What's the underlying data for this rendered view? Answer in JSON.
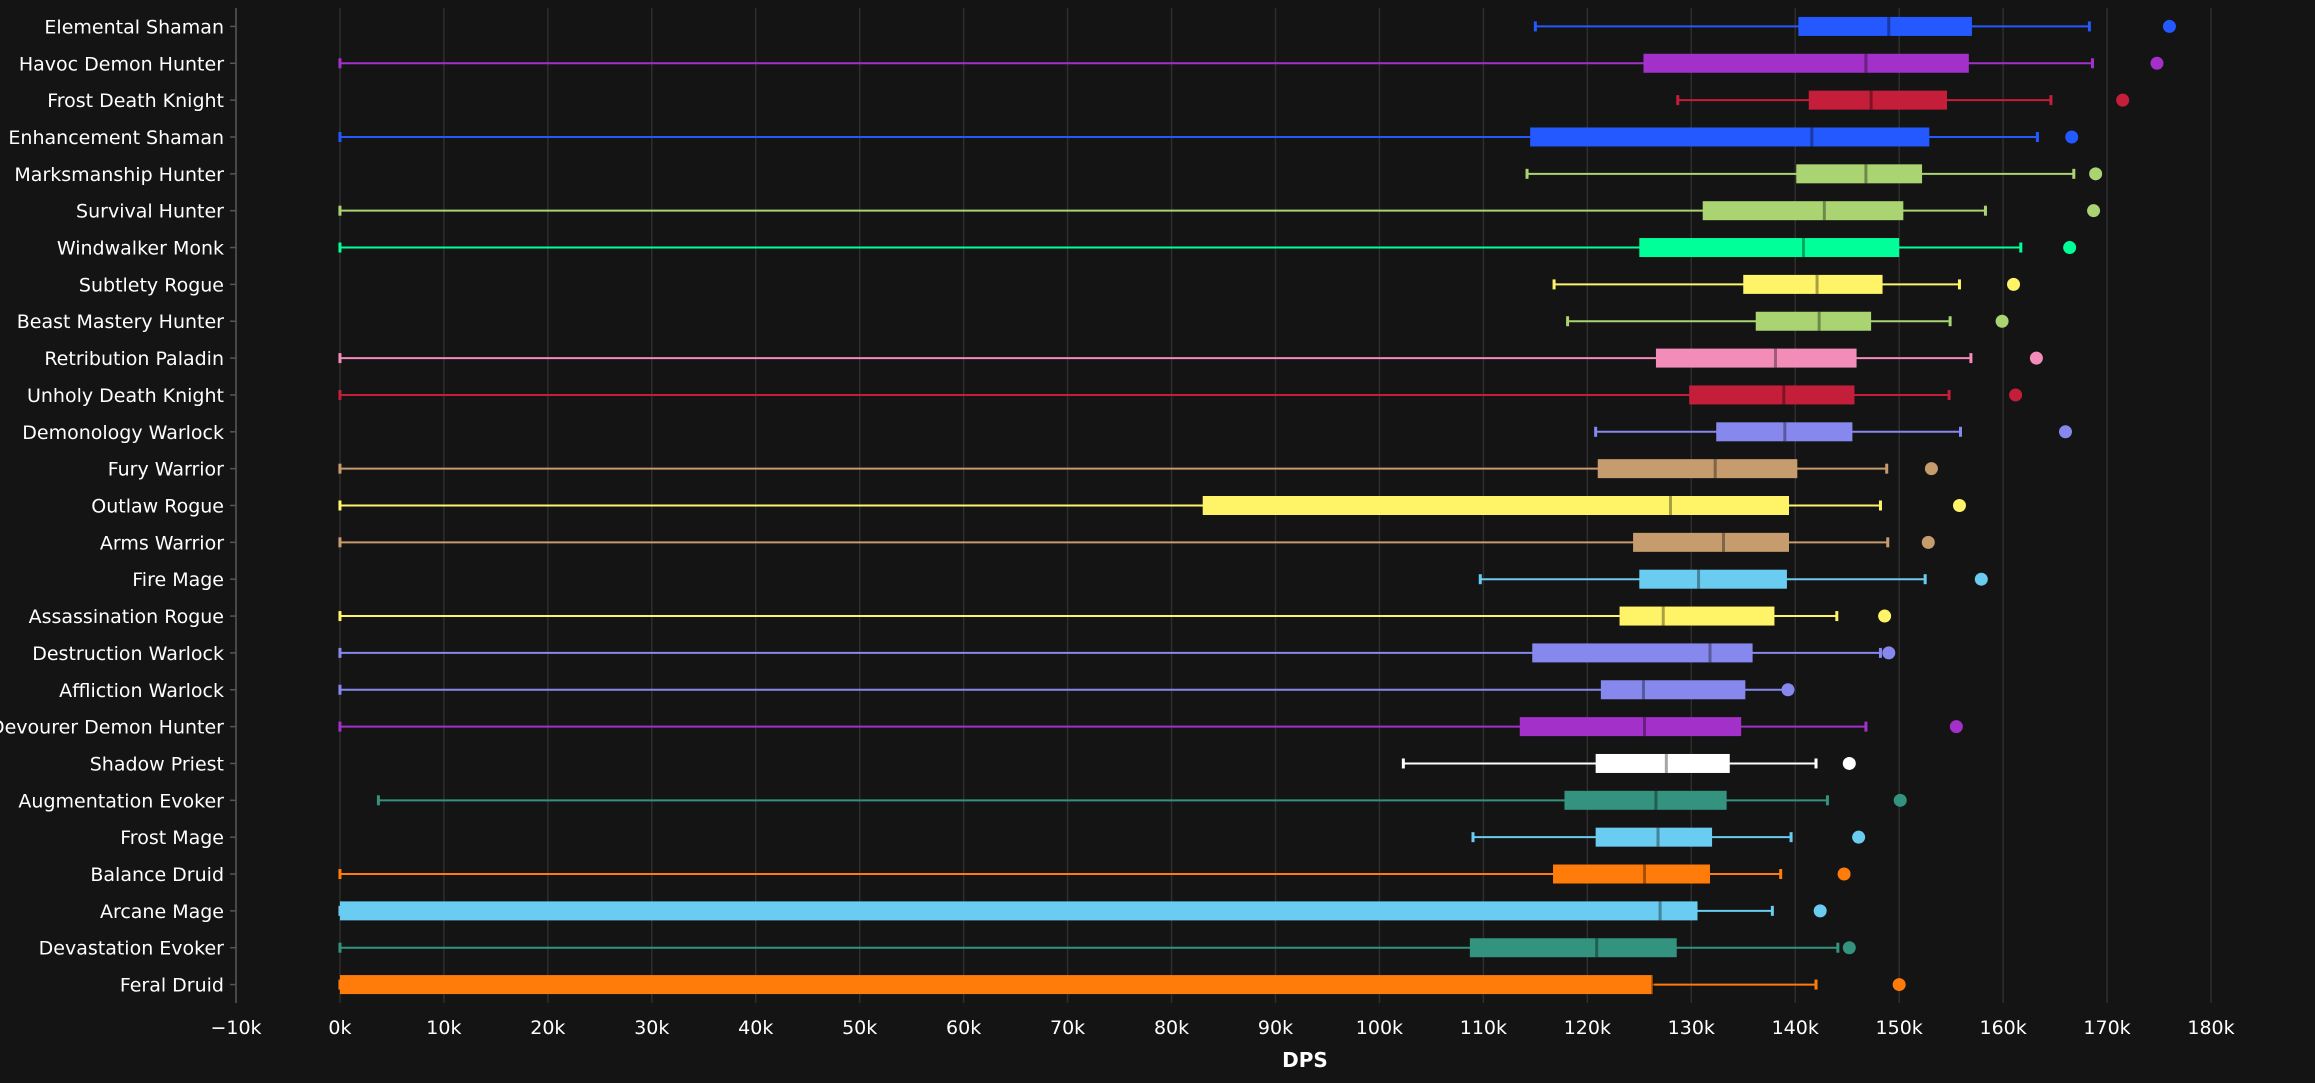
{
  "chart_data": {
    "type": "boxplot",
    "orientation": "horizontal",
    "xlabel": "DPS",
    "xlim": [
      -10000,
      185000
    ],
    "x_ticks": [
      -10000,
      0,
      10000,
      20000,
      30000,
      40000,
      50000,
      60000,
      70000,
      80000,
      90000,
      100000,
      110000,
      120000,
      130000,
      140000,
      150000,
      160000,
      170000,
      180000
    ],
    "x_tick_labels": [
      "−10k",
      "0k",
      "10k",
      "20k",
      "30k",
      "40k",
      "50k",
      "60k",
      "70k",
      "80k",
      "90k",
      "100k",
      "110k",
      "120k",
      "130k",
      "140k",
      "150k",
      "160k",
      "170k",
      "180k"
    ],
    "grid": "vertical",
    "series": [
      {
        "name": "Elemental Shaman",
        "color": "#2459ff",
        "min": 115000,
        "q1": 140300,
        "median": 149000,
        "q3": 157000,
        "max": 168300,
        "outlier": 176000
      },
      {
        "name": "Havoc Demon Hunter",
        "color": "#a330c9",
        "min": 0,
        "q1": 125400,
        "median": 146800,
        "q3": 156700,
        "max": 168600,
        "outlier": 174800
      },
      {
        "name": "Frost Death Knight",
        "color": "#c41e3a",
        "min": 128700,
        "q1": 141300,
        "median": 147300,
        "q3": 154600,
        "max": 164600,
        "outlier": 171500
      },
      {
        "name": "Enhancement Shaman",
        "color": "#2459ff",
        "min": 0,
        "q1": 114500,
        "median": 141600,
        "q3": 152900,
        "max": 163300,
        "outlier": 166600
      },
      {
        "name": "Marksmanship Hunter",
        "color": "#aad372",
        "min": 114200,
        "q1": 140100,
        "median": 146800,
        "q3": 152200,
        "max": 166800,
        "outlier": 168900
      },
      {
        "name": "Survival Hunter",
        "color": "#aad372",
        "min": 0,
        "q1": 131100,
        "median": 142800,
        "q3": 150400,
        "max": 158300,
        "outlier": 168700
      },
      {
        "name": "Windwalker Monk",
        "color": "#00ff98",
        "min": 0,
        "q1": 125000,
        "median": 140800,
        "q3": 150000,
        "max": 161700,
        "outlier": 166400
      },
      {
        "name": "Subtlety Rogue",
        "color": "#fff468",
        "min": 116800,
        "q1": 135000,
        "median": 142100,
        "q3": 148400,
        "max": 155800,
        "outlier": 161000
      },
      {
        "name": "Beast Mastery Hunter",
        "color": "#aad372",
        "min": 118100,
        "q1": 136200,
        "median": 142300,
        "q3": 147300,
        "max": 154900,
        "outlier": 159900
      },
      {
        "name": "Retribution Paladin",
        "color": "#f48cba",
        "min": 0,
        "q1": 126600,
        "median": 138100,
        "q3": 145900,
        "max": 156900,
        "outlier": 163200
      },
      {
        "name": "Unholy Death Knight",
        "color": "#c41e3a",
        "min": 0,
        "q1": 129800,
        "median": 138900,
        "q3": 145700,
        "max": 154800,
        "outlier": 161200
      },
      {
        "name": "Demonology Warlock",
        "color": "#8788ee",
        "min": 120800,
        "q1": 132400,
        "median": 139000,
        "q3": 145500,
        "max": 155900,
        "outlier": 166000
      },
      {
        "name": "Fury Warrior",
        "color": "#c69b6d",
        "min": 0,
        "q1": 121000,
        "median": 132300,
        "q3": 140200,
        "max": 148800,
        "outlier": 153100
      },
      {
        "name": "Outlaw Rogue",
        "color": "#fff468",
        "min": 0,
        "q1": 83000,
        "median": 128000,
        "q3": 139400,
        "max": 148200,
        "outlier": 155800
      },
      {
        "name": "Arms Warrior",
        "color": "#c69b6d",
        "min": 0,
        "q1": 124400,
        "median": 133100,
        "q3": 139400,
        "max": 148900,
        "outlier": 152800
      },
      {
        "name": "Fire Mage",
        "color": "#69ccf0",
        "min": 109700,
        "q1": 125000,
        "median": 130700,
        "q3": 139200,
        "max": 152500,
        "outlier": 157900
      },
      {
        "name": "Assassination Rogue",
        "color": "#fff468",
        "min": 0,
        "q1": 123100,
        "median": 127300,
        "q3": 138000,
        "max": 144000,
        "outlier": 148600
      },
      {
        "name": "Destruction Warlock",
        "color": "#8788ee",
        "min": 0,
        "q1": 114700,
        "median": 131800,
        "q3": 135900,
        "max": 148200,
        "outlier": 149000
      },
      {
        "name": "Affliction Warlock",
        "color": "#8788ee",
        "min": 0,
        "q1": 121300,
        "median": 125400,
        "q3": 135200,
        "max": 139600,
        "outlier": 139300
      },
      {
        "name": "Devourer Demon Hunter",
        "color": "#a330c9",
        "min": 0,
        "q1": 113500,
        "median": 125500,
        "q3": 134800,
        "max": 146800,
        "outlier": 155500
      },
      {
        "name": "Shadow Priest",
        "color": "#ffffff",
        "min": 102300,
        "q1": 120800,
        "median": 127600,
        "q3": 133700,
        "max": 142000,
        "outlier": 145200
      },
      {
        "name": "Augmentation Evoker",
        "color": "#33937f",
        "min": 3700,
        "q1": 117800,
        "median": 126600,
        "q3": 133400,
        "max": 143100,
        "outlier": 150100
      },
      {
        "name": "Frost Mage",
        "color": "#69ccf0",
        "min": 109000,
        "q1": 120800,
        "median": 126800,
        "q3": 132000,
        "max": 139600,
        "outlier": 146100
      },
      {
        "name": "Balance Druid",
        "color": "#ff7c0a",
        "min": 0,
        "q1": 116700,
        "median": 125500,
        "q3": 131800,
        "max": 138600,
        "outlier": 144700
      },
      {
        "name": "Arcane Mage",
        "color": "#69ccf0",
        "min": 0,
        "q1": 0,
        "median": 127000,
        "q3": 130600,
        "max": 137800,
        "outlier": 142400
      },
      {
        "name": "Devastation Evoker",
        "color": "#33937f",
        "min": 0,
        "q1": 108700,
        "median": 120900,
        "q3": 128600,
        "max": 144100,
        "outlier": 145200
      },
      {
        "name": "Feral Druid",
        "color": "#ff7c0a",
        "min": 0,
        "q1": 0,
        "median": 126300,
        "q3": 126300,
        "max": 142000,
        "outlier": 150000
      }
    ]
  }
}
